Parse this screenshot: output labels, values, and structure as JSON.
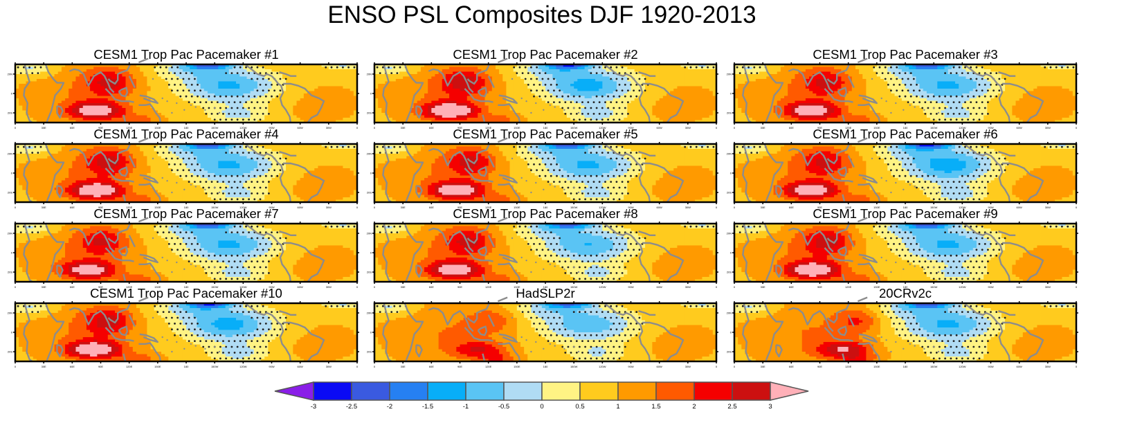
{
  "chart_data": {
    "type": "heatmap",
    "title": "ENSO PSL Composites DJF 1920-2013",
    "variable": "PSL",
    "season": "DJF",
    "period": "1920-2013",
    "layout": "4x3 panel grid",
    "panels": [
      {
        "title": "CESM1 Trop Pac Pacemaker #1"
      },
      {
        "title": "CESM1 Trop Pac Pacemaker #2"
      },
      {
        "title": "CESM1 Trop Pac Pacemaker #3"
      },
      {
        "title": "CESM1 Trop Pac Pacemaker #4"
      },
      {
        "title": "CESM1 Trop Pac Pacemaker #5"
      },
      {
        "title": "CESM1 Trop Pac Pacemaker #6"
      },
      {
        "title": "CESM1 Trop Pac Pacemaker #7"
      },
      {
        "title": "CESM1 Trop Pac Pacemaker #8"
      },
      {
        "title": "CESM1 Trop Pac Pacemaker #9"
      },
      {
        "title": "CESM1 Trop Pac Pacemaker #10"
      },
      {
        "title": "HadSLP2r"
      },
      {
        "title": "20CRv2c"
      }
    ],
    "x_ticks": [
      "0",
      "30E",
      "60E",
      "90E",
      "120E",
      "150E",
      "180",
      "150W",
      "120W",
      "90W",
      "60W",
      "30W",
      "0"
    ],
    "y_ticks": [
      "20N",
      "0",
      "20S"
    ],
    "xlim_deg": [
      0,
      360
    ],
    "ylim_deg": [
      -30,
      30
    ],
    "stippling": "dots mark grid points (non-significant regions)",
    "colorbar": {
      "levels": [
        -3,
        -2.5,
        -2,
        -1.5,
        -1,
        -0.5,
        0,
        0.5,
        1,
        1.5,
        2,
        2.5,
        3
      ],
      "labels": [
        "-3",
        "-2.5",
        "-2",
        "-1.5",
        "-1",
        "-0.5",
        "0",
        "0.5",
        "1",
        "1.5",
        "2",
        "2.5",
        "3"
      ],
      "colors": [
        "#8a1ee8",
        "#0a0af5",
        "#3a5ae0",
        "#2680f2",
        "#08aef8",
        "#5ac4f4",
        "#b0dcf4",
        "#fff384",
        "#ffcb1e",
        "#ff9a00",
        "#ff5a00",
        "#f50000",
        "#cc1010",
        "#ffb0b8"
      ],
      "extend": "both",
      "orientation": "horizontal",
      "placement": "bottom"
    },
    "features": {
      "max_positive_region": "Indian Ocean / Maritime Continent (~90E, 20S to 20N), values > 3",
      "min_negative_region": "Central-Eastern Pacific (~150W-100W), values down to < -3 near 25N",
      "coastline_color": "#8c8c8c"
    }
  }
}
